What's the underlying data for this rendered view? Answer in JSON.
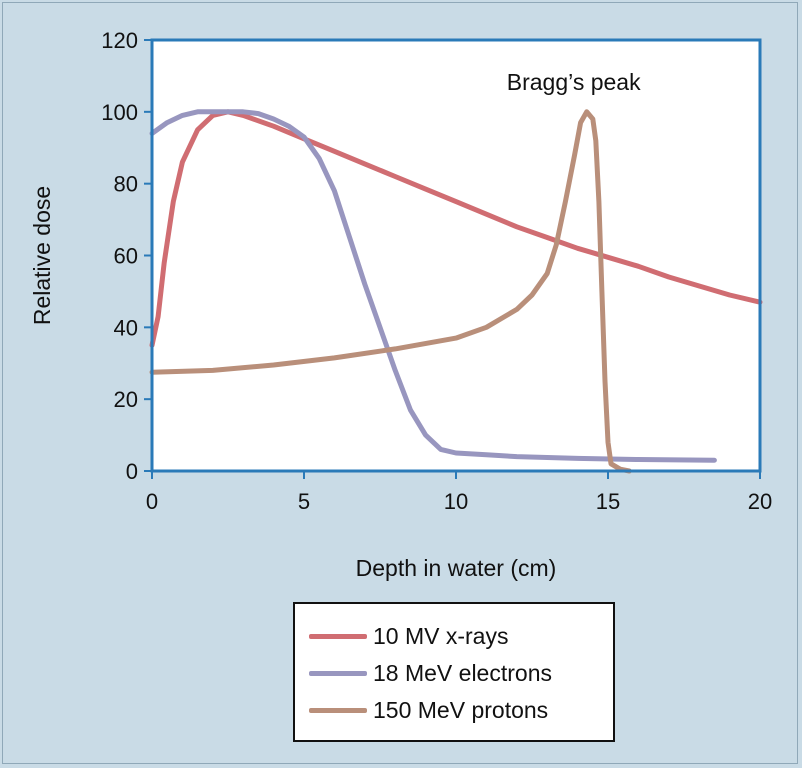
{
  "chart_data": {
    "type": "line",
    "xlabel": "Depth in water (cm)",
    "ylabel": "Relative dose",
    "xlim": [
      0,
      20
    ],
    "ylim": [
      0,
      120
    ],
    "xticks": [
      "0",
      "5",
      "10",
      "15",
      "20"
    ],
    "yticks": [
      "0",
      "20",
      "40",
      "60",
      "80",
      "100",
      "120"
    ],
    "grid": false,
    "legend": "bottom-center",
    "annotation": {
      "text": "Bragg’s peak",
      "x": 14.2,
      "y": 100
    },
    "colors": {
      "plot_bg": "#ffffff",
      "page_bg": "#c9dbe6",
      "axes": "#2a7ab8"
    },
    "series": [
      {
        "name": "10 MV x-rays",
        "color": "#d06d72",
        "points": [
          [
            0,
            35
          ],
          [
            0.2,
            43
          ],
          [
            0.4,
            58
          ],
          [
            0.7,
            75
          ],
          [
            1.0,
            86
          ],
          [
            1.5,
            95
          ],
          [
            2.0,
            99
          ],
          [
            2.5,
            100
          ],
          [
            3,
            99
          ],
          [
            4,
            96
          ],
          [
            5,
            92.5
          ],
          [
            6,
            89
          ],
          [
            7,
            85.5
          ],
          [
            8,
            82
          ],
          [
            9,
            78.5
          ],
          [
            10,
            75
          ],
          [
            11,
            71.5
          ],
          [
            12,
            68
          ],
          [
            13,
            65
          ],
          [
            14,
            62
          ],
          [
            15,
            59.5
          ],
          [
            16,
            57
          ],
          [
            17,
            54
          ],
          [
            18,
            51.5
          ],
          [
            19,
            49
          ],
          [
            20,
            47
          ]
        ]
      },
      {
        "name": "18 MeV electrons",
        "color": "#9896bf",
        "points": [
          [
            0,
            94
          ],
          [
            0.5,
            97
          ],
          [
            1,
            99
          ],
          [
            1.5,
            100
          ],
          [
            2,
            100
          ],
          [
            2.5,
            100
          ],
          [
            3,
            100
          ],
          [
            3.5,
            99.5
          ],
          [
            4,
            98
          ],
          [
            4.5,
            96
          ],
          [
            5,
            93
          ],
          [
            5.5,
            87
          ],
          [
            6,
            78
          ],
          [
            6.5,
            65
          ],
          [
            7,
            52
          ],
          [
            7.5,
            40
          ],
          [
            8,
            28
          ],
          [
            8.5,
            17
          ],
          [
            9,
            10
          ],
          [
            9.5,
            6
          ],
          [
            10,
            5
          ],
          [
            11,
            4.5
          ],
          [
            12,
            4
          ],
          [
            14,
            3.5
          ],
          [
            16,
            3.2
          ],
          [
            18.5,
            3
          ]
        ]
      },
      {
        "name": "150 MeV protons",
        "color": "#b98f7a",
        "points": [
          [
            0,
            27.5
          ],
          [
            2,
            28
          ],
          [
            4,
            29.5
          ],
          [
            6,
            31.5
          ],
          [
            8,
            34
          ],
          [
            10,
            37
          ],
          [
            11,
            40
          ],
          [
            12,
            45
          ],
          [
            12.5,
            49
          ],
          [
            13,
            55
          ],
          [
            13.3,
            63
          ],
          [
            13.6,
            75
          ],
          [
            13.9,
            88
          ],
          [
            14.1,
            97
          ],
          [
            14.3,
            100
          ],
          [
            14.5,
            98
          ],
          [
            14.6,
            92
          ],
          [
            14.7,
            75
          ],
          [
            14.8,
            50
          ],
          [
            14.9,
            25
          ],
          [
            15.0,
            8
          ],
          [
            15.1,
            2
          ],
          [
            15.4,
            0.5
          ],
          [
            15.7,
            0
          ]
        ]
      }
    ]
  }
}
